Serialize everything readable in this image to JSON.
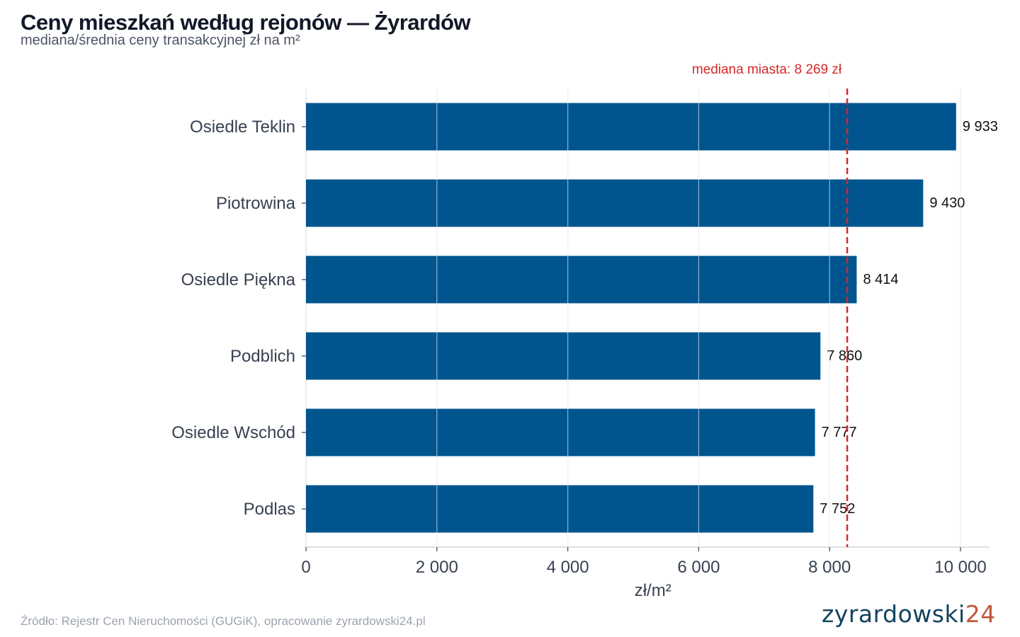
{
  "header": {
    "title": "Ceny mieszkań według rejonów — Żyrardów",
    "subtitle": "mediana/średnia ceny transakcyjnej zł na m²"
  },
  "footer": {
    "source": "Źródło: Rejestr Cen Nieruchomości (GUGiK), opracowanie zyrardowski24.pl",
    "logo_text": "zyrardowski",
    "logo_number": "24"
  },
  "colors": {
    "bar": "#00558f",
    "median_line": "#d62728",
    "grid": "#e5e7eb",
    "logo_text": "#14435f",
    "logo_number": "#c0573c"
  },
  "chart_data": {
    "type": "bar",
    "orientation": "horizontal",
    "categories": [
      "Osiedle Teklin",
      "Piotrowina",
      "Osiedle Piękna",
      "Podblich",
      "Osiedle Wschód",
      "Podlas"
    ],
    "values": [
      9933,
      9430,
      8414,
      7860,
      7777,
      7752
    ],
    "value_labels": [
      "9 933",
      "9 430",
      "8 414",
      "7 860",
      "7 777",
      "7 752"
    ],
    "xlabel": "zł/m²",
    "ylabel": "",
    "xlim": [
      0,
      10450
    ],
    "xticks": [
      0,
      2000,
      4000,
      6000,
      8000,
      10000
    ],
    "xtick_labels": [
      "0",
      "2 000",
      "4 000",
      "6 000",
      "8 000",
      "10 000"
    ],
    "grid": "vertical",
    "reference_line": {
      "value": 8269,
      "label": "mediana miasta: 8 269 zł",
      "style": "dashed"
    }
  }
}
